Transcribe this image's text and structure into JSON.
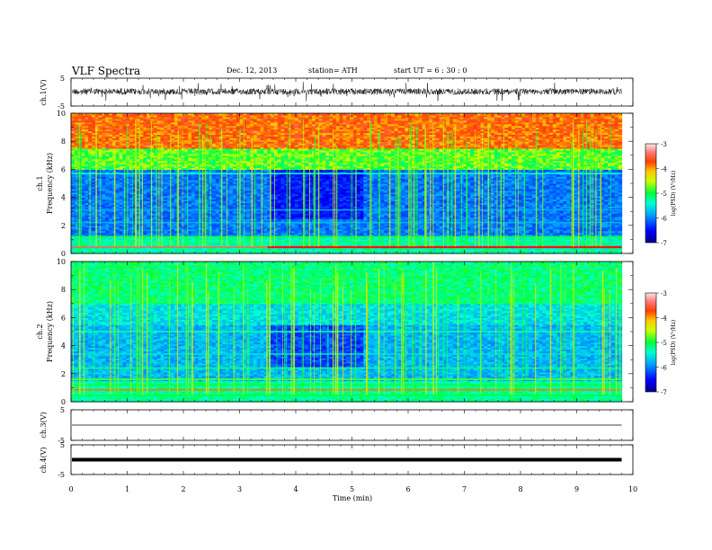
{
  "header": {
    "title": "VLF  Spectra",
    "date": "Dec. 12, 2013",
    "station": "station= ATH",
    "start_ut": "start  UT  =   6  : 30 : 0"
  },
  "chart_data": [
    {
      "type": "line",
      "panel": "ch1",
      "ylabel": "ch.1(V)",
      "ylim": [
        -5,
        5
      ],
      "yticks": [
        "5",
        "-5"
      ],
      "xlim": [
        0,
        10
      ],
      "description_level": 0.2
    },
    {
      "type": "heatmap",
      "panel": "ch1-spectrogram",
      "ylabel_channel": "ch.1",
      "ylabel": "Frequency  (kHz)",
      "ylim": [
        0,
        10
      ],
      "yticks": [
        "0",
        "2",
        "4",
        "6",
        "8",
        "10"
      ],
      "xlim": [
        0,
        10
      ],
      "data_end_min": 9.8,
      "colorbar": {
        "label": "log(PSD) (V²/Hz)",
        "range": [
          -7,
          -3
        ],
        "ticks": [
          "-3",
          "-4",
          "-5",
          "-6",
          "-7"
        ]
      }
    },
    {
      "type": "heatmap",
      "panel": "ch2-spectrogram",
      "ylabel_channel": "ch.2",
      "ylabel": "Frequency  (kHz)",
      "ylim": [
        0,
        10
      ],
      "yticks": [
        "0",
        "2",
        "4",
        "6",
        "8",
        "10"
      ],
      "xlim": [
        0,
        10
      ],
      "data_end_min": 9.8,
      "colorbar": {
        "label": "log(PSD) (V²/Hz)",
        "range": [
          -7,
          -3
        ],
        "ticks": [
          "-3",
          "-4",
          "-5",
          "-6",
          "-7"
        ]
      }
    },
    {
      "type": "line",
      "panel": "ch3",
      "ylabel": "ch.3(V)",
      "ylim": [
        -5,
        5
      ],
      "yticks": [
        "5",
        "-5"
      ],
      "xlim": [
        0,
        10
      ],
      "level": 0
    },
    {
      "type": "line",
      "panel": "ch4",
      "ylabel": "ch.4(V)",
      "ylim": [
        -5,
        5
      ],
      "yticks": [
        "5",
        "-5"
      ],
      "xlim": [
        0,
        10
      ],
      "xlabel": "Time  (min)",
      "xticks": [
        "0",
        "1",
        "2",
        "3",
        "4",
        "5",
        "6",
        "7",
        "8",
        "9",
        "10"
      ],
      "level": 0
    }
  ]
}
